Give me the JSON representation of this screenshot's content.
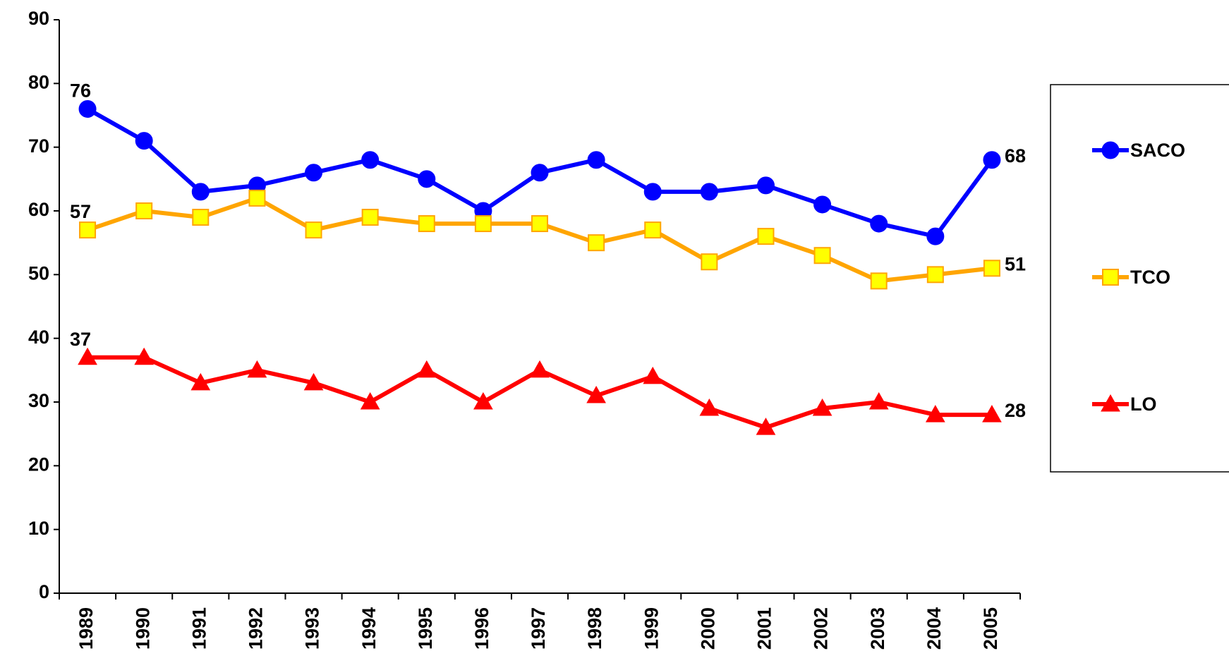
{
  "chart_data": {
    "type": "line",
    "categories": [
      "1989",
      "1990",
      "1991",
      "1992",
      "1993",
      "1994",
      "1995",
      "1996",
      "1997",
      "1998",
      "1999",
      "2000",
      "2001",
      "2002",
      "2003",
      "2004",
      "2005"
    ],
    "series": [
      {
        "name": "SACO",
        "color": "#0000ff",
        "marker": "circle",
        "values": [
          76,
          71,
          63,
          64,
          66,
          68,
          65,
          60,
          66,
          68,
          63,
          63,
          64,
          61,
          58,
          56,
          68
        ]
      },
      {
        "name": "TCO",
        "color": "#ffa500",
        "marker": "square",
        "values": [
          57,
          60,
          59,
          62,
          57,
          59,
          58,
          58,
          58,
          55,
          57,
          52,
          56,
          53,
          49,
          50,
          51
        ]
      },
      {
        "name": "LO",
        "color": "#ff0000",
        "marker": "triangle",
        "values": [
          37,
          37,
          33,
          35,
          33,
          30,
          35,
          30,
          35,
          31,
          34,
          29,
          26,
          29,
          30,
          28,
          28
        ]
      }
    ],
    "ylim": [
      0,
      90
    ],
    "yticks": [
      0,
      10,
      20,
      30,
      40,
      50,
      60,
      70,
      80,
      90
    ],
    "legend": "right"
  }
}
